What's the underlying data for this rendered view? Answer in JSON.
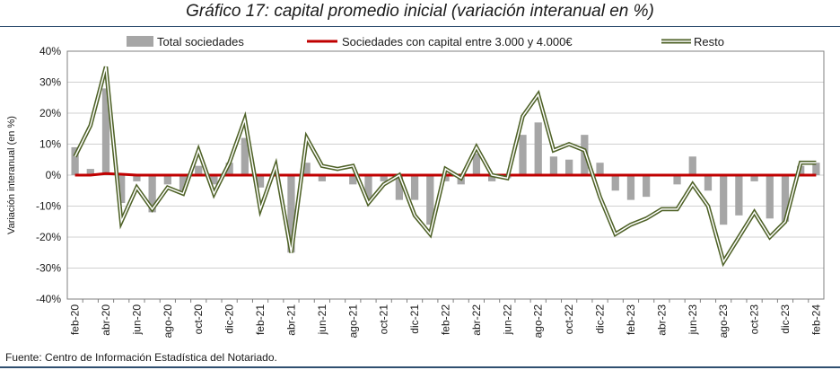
{
  "title": "Gráfico 17: capital promedio inicial (variación interanual en %)",
  "source": "Fuente: Centro de Información Estadística del Notariado.",
  "chart_data": {
    "type": "bar+line",
    "ylabel": "Variación interanual (en %)",
    "ylim": [
      -40,
      40
    ],
    "yticks": [
      -40,
      -30,
      -20,
      -10,
      0,
      10,
      20,
      30,
      40
    ],
    "ytick_labels": [
      "-40%",
      "-30%",
      "-20%",
      "-10%",
      "0%",
      "10%",
      "20%",
      "30%",
      "40%"
    ],
    "grid": true,
    "legend_position": "top",
    "x": [
      "feb-20",
      "mar-20",
      "abr-20",
      "may-20",
      "jun-20",
      "jul-20",
      "ago-20",
      "sep-20",
      "oct-20",
      "nov-20",
      "dic-20",
      "ene-21",
      "feb-21",
      "mar-21",
      "abr-21",
      "may-21",
      "jun-21",
      "jul-21",
      "ago-21",
      "sep-21",
      "oct-21",
      "nov-21",
      "dic-21",
      "ene-22",
      "feb-22",
      "mar-22",
      "abr-22",
      "may-22",
      "jun-22",
      "jul-22",
      "ago-22",
      "sep-22",
      "oct-22",
      "nov-22",
      "dic-22",
      "ene-23",
      "feb-23",
      "mar-23",
      "abr-23",
      "may-23",
      "jun-23",
      "jul-23",
      "ago-23",
      "sep-23",
      "oct-23",
      "nov-23",
      "dic-23",
      "ene-24",
      "feb-24"
    ],
    "x_tick_labels": [
      "feb-20",
      "abr-20",
      "jun-20",
      "ago-20",
      "oct-20",
      "dic-20",
      "feb-21",
      "abr-21",
      "jun-21",
      "ago-21",
      "oct-21",
      "dic-21",
      "feb-22",
      "abr-22",
      "jun-22",
      "ago-22",
      "oct-22",
      "dic-22",
      "feb-23",
      "abr-23",
      "jun-23",
      "ago-23",
      "oct-23",
      "dic-23",
      "feb-24"
    ],
    "series": [
      {
        "name": "Total sociedades",
        "kind": "bar",
        "color": "#a6a6a6",
        "values": [
          9,
          2,
          28,
          -9,
          -2,
          -12,
          -3,
          -5,
          3,
          -3,
          4,
          12,
          -4,
          0,
          -25,
          4,
          -2,
          0,
          -3,
          -8,
          -2,
          -8,
          -8,
          -16,
          -2,
          -3,
          7,
          -2,
          -1,
          13,
          17,
          6,
          5,
          13,
          4,
          -5,
          -8,
          -7,
          0,
          -3,
          6,
          -5,
          -16,
          -13,
          -2,
          -14,
          -15,
          3,
          4
        ]
      },
      {
        "name": "Sociedades con capital entre 3.000 y 4.000€",
        "kind": "line",
        "color": "#c00000",
        "values": [
          0,
          0,
          0.5,
          0.3,
          0,
          0,
          0,
          0,
          0,
          0,
          0,
          0,
          0,
          0,
          0,
          0,
          0,
          0,
          0,
          0,
          0,
          0,
          0,
          0,
          0,
          0,
          0,
          0,
          0,
          0,
          0,
          0,
          0,
          0,
          0,
          0,
          0,
          0,
          0,
          0,
          0,
          0,
          0,
          0,
          0,
          0,
          0,
          0,
          0
        ]
      },
      {
        "name": "Resto",
        "kind": "line",
        "color": "#4f6228",
        "values": [
          6,
          16,
          35,
          -15,
          -4,
          -11,
          -4,
          -6,
          8,
          -6,
          4,
          18,
          -11,
          3,
          -25,
          12,
          3,
          2,
          3,
          -9,
          -3,
          0,
          -13,
          -19,
          2,
          -1,
          9,
          0,
          -1,
          19,
          26,
          8,
          10,
          8,
          -7,
          -19,
          -16,
          -14,
          -11,
          -11,
          -3,
          -10,
          -28,
          -20,
          -12,
          -20,
          -15,
          4,
          4
        ]
      }
    ]
  }
}
